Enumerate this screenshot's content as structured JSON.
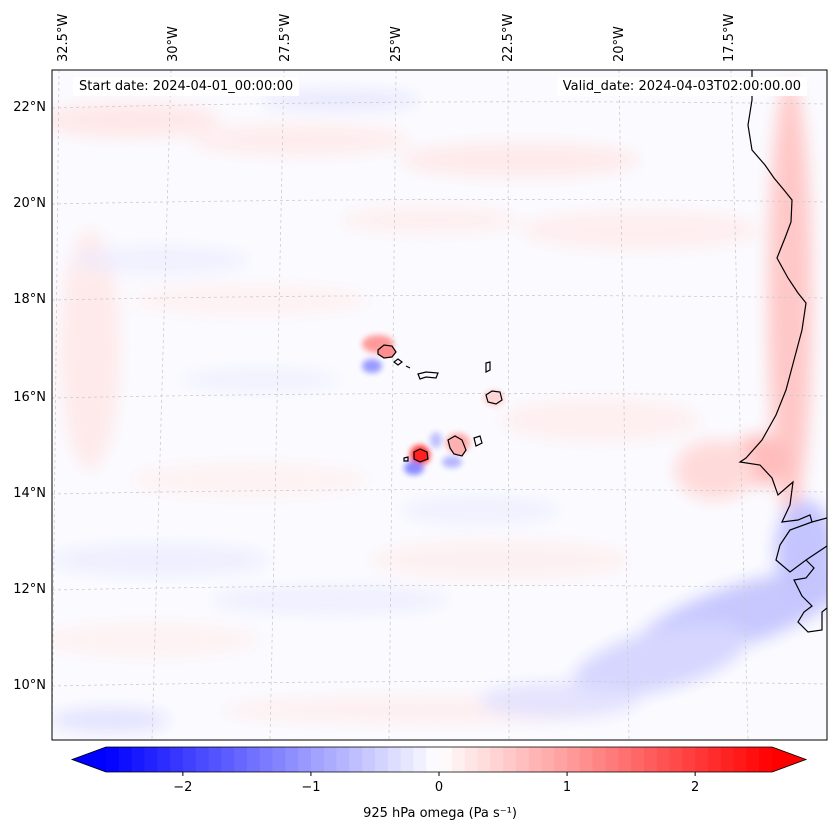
{
  "header": {
    "start_date": "Start date: 2024-04-01_00:00:00",
    "valid_date": "Valid_date: 2024-04-03T02:00:00.00"
  },
  "axes": {
    "lon_labels": [
      "32.5°W",
      "30°W",
      "27.5°W",
      "25°W",
      "22.5°W",
      "20°W",
      "17.5°W"
    ],
    "lat_labels": [
      "22°N",
      "20°N",
      "18°N",
      "16°N",
      "14°N",
      "12°N",
      "10°N"
    ]
  },
  "colorbar": {
    "ticks": [
      "−2",
      "−1",
      "0",
      "1",
      "2"
    ],
    "label": "925 hPa omega (Pa s⁻¹)",
    "min": -2.6,
    "max": 2.6,
    "colors": {
      "low": "#0000ff",
      "mid": "#ffffff",
      "high": "#ff0000"
    }
  },
  "map": {
    "variable": "925 hPa omega",
    "gridline_color": "#cccccc",
    "coast_color": "#000000"
  }
}
